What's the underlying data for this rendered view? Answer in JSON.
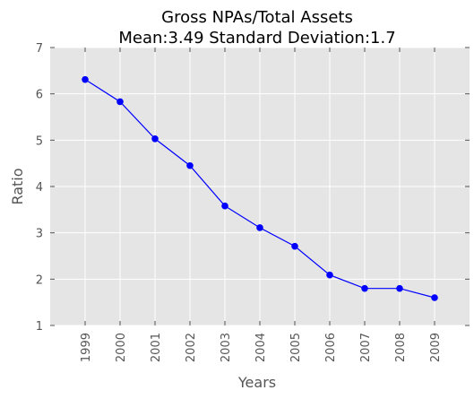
{
  "chart_data": {
    "type": "line",
    "title": "Gross NPAs/Total Assets",
    "subtitle": "Mean:3.49 Standard Deviation:1.7",
    "xlabel": "Years",
    "ylabel": "Ratio",
    "categories": [
      "1999",
      "2000",
      "2001",
      "2002",
      "2003",
      "2004",
      "2005",
      "2006",
      "2007",
      "2008",
      "2009"
    ],
    "values": [
      6.31,
      5.83,
      5.03,
      4.45,
      3.58,
      3.11,
      2.71,
      2.09,
      1.8,
      1.8,
      1.6
    ],
    "yticks": [
      "1",
      "2",
      "3",
      "4",
      "5",
      "6",
      "7"
    ],
    "ylim": [
      1,
      7
    ],
    "grid": true,
    "colors": {
      "line": "#0000ff",
      "marker": "#0000ff",
      "plot_background": "#e5e5e5",
      "grid": "#ffffff"
    }
  }
}
